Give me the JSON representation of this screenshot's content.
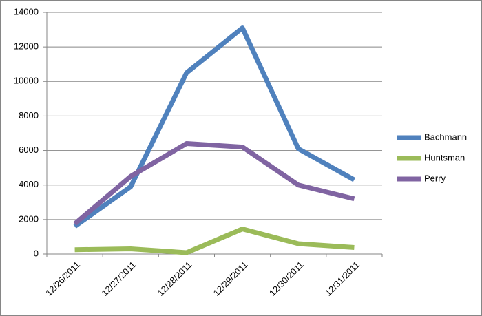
{
  "chart_data": {
    "type": "line",
    "categories": [
      "12/26/2011",
      "12/27/2011",
      "12/28/2011",
      "12/29/2011",
      "12/30/2011",
      "12/31/2011"
    ],
    "series": [
      {
        "name": "Bachmann",
        "color": "#4f81bd",
        "values": [
          1600,
          3900,
          10500,
          13100,
          6100,
          4300
        ]
      },
      {
        "name": "Huntsman",
        "color": "#9bbb59",
        "values": [
          250,
          300,
          80,
          1450,
          600,
          380
        ]
      },
      {
        "name": "Perry",
        "color": "#8064a2",
        "values": [
          1750,
          4500,
          6400,
          6200,
          4000,
          3200
        ]
      }
    ],
    "ylim": [
      0,
      14000
    ],
    "yticks": [
      0,
      2000,
      4000,
      6000,
      8000,
      10000,
      12000,
      14000
    ],
    "grid": true,
    "legend": "right"
  }
}
